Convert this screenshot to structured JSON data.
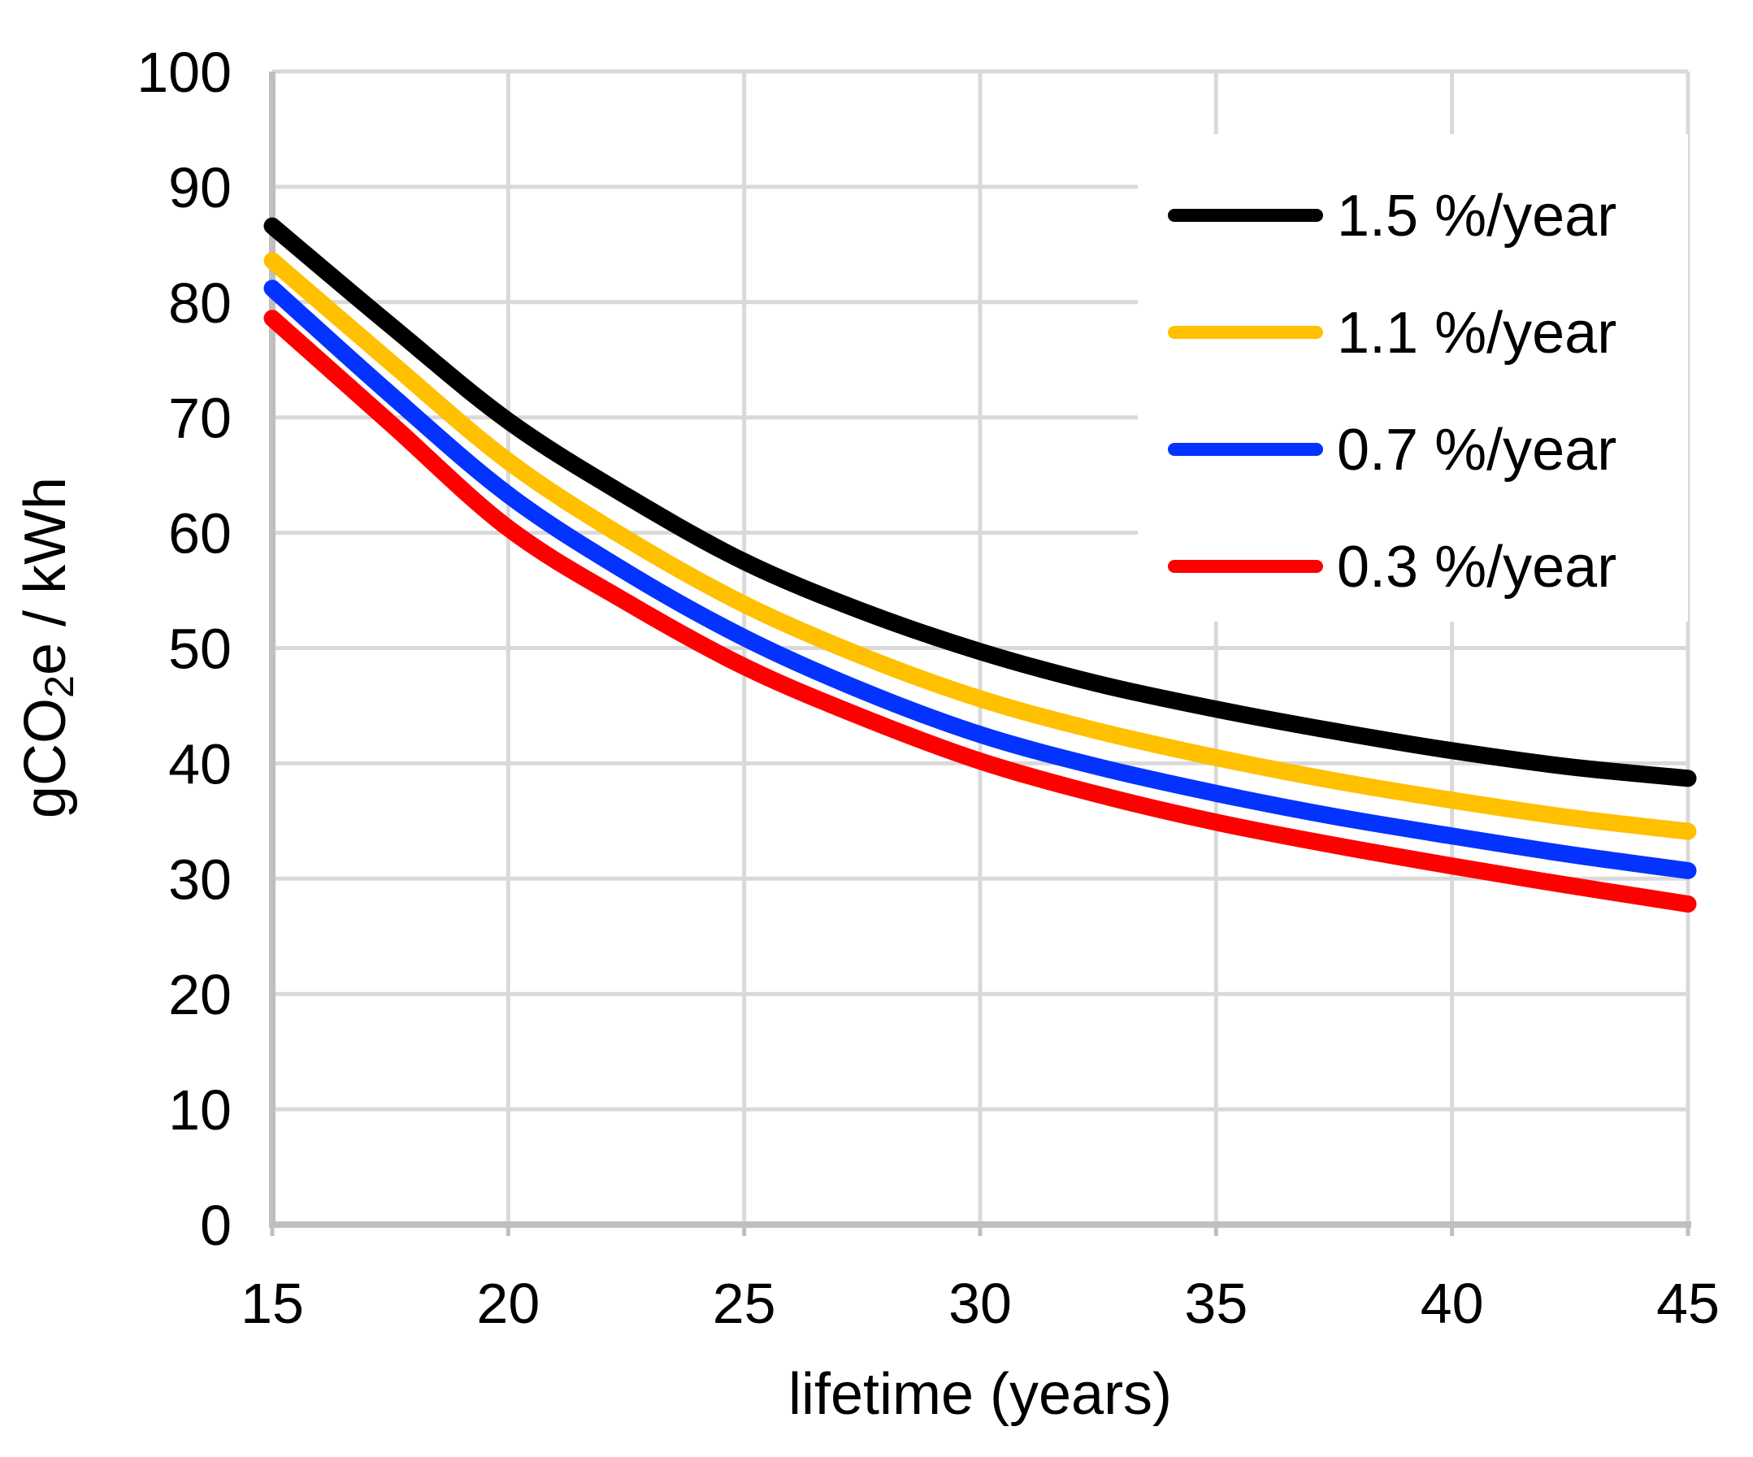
{
  "chart_data": {
    "type": "line",
    "title": "",
    "xlabel": "lifetime (years)",
    "ylabel": "gCO2e / kWh",
    "ylabel_parts": {
      "prefix": "gCO",
      "sub": "2",
      "suffix": "e / kWh"
    },
    "xlim": [
      15,
      45
    ],
    "ylim": [
      0,
      100
    ],
    "xticks": [
      15,
      20,
      25,
      30,
      35,
      40,
      45
    ],
    "yticks": [
      0,
      10,
      20,
      30,
      40,
      50,
      60,
      70,
      80,
      90,
      100
    ],
    "grid": true,
    "legend_position": "top-right",
    "x": [
      15,
      17.5,
      20,
      22.5,
      25,
      27.5,
      30,
      32.5,
      35,
      37.5,
      40,
      42.5,
      45
    ],
    "series": [
      {
        "name": "1.5 %/year",
        "color": "#000000",
        "values": [
          86.6,
          78.0,
          69.7,
          63.2,
          57.5,
          53.2,
          49.7,
          46.9,
          44.7,
          42.8,
          41.1,
          39.7,
          38.7
        ]
      },
      {
        "name": "1.1 %/year",
        "color": "#FFC000",
        "values": [
          83.6,
          74.8,
          66.2,
          59.5,
          53.8,
          49.3,
          45.6,
          42.8,
          40.5,
          38.5,
          36.8,
          35.3,
          34.1
        ]
      },
      {
        "name": "0.7 %/year",
        "color": "#0433FF",
        "values": [
          81.2,
          72.0,
          63.3,
          56.6,
          50.9,
          46.3,
          42.5,
          39.7,
          37.4,
          35.4,
          33.7,
          32.1,
          30.7
        ]
      },
      {
        "name": "0.3 %/year",
        "color": "#FF0000",
        "values": [
          78.6,
          69.5,
          60.4,
          54.0,
          48.4,
          44.0,
          40.2,
          37.3,
          34.9,
          32.9,
          31.1,
          29.4,
          27.8
        ]
      }
    ],
    "colors": {
      "background": "#FFFFFF",
      "gridline": "#D9D9D9",
      "axis_line": "#BFBFBF",
      "text": "#000000"
    }
  }
}
